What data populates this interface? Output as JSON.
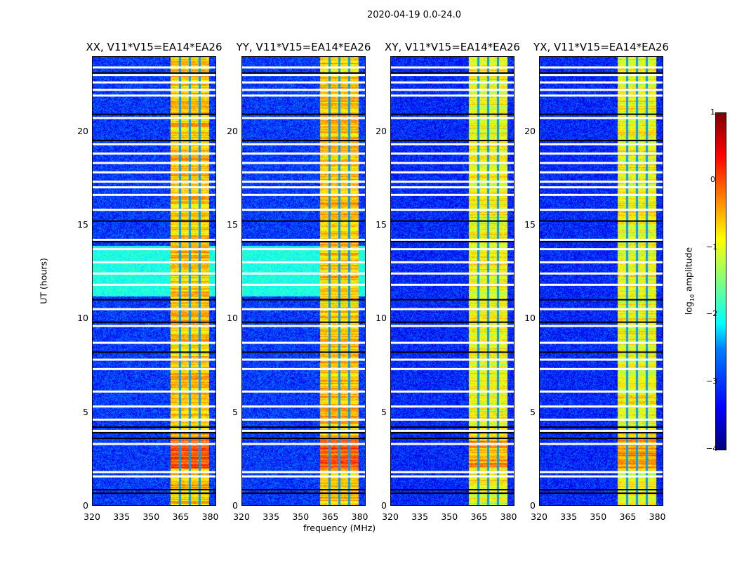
{
  "chart_data": {
    "type": "heatmap",
    "title": "2020-04-19 0.0-24.0",
    "xlabel": "frequency (MHz)",
    "ylabel": "UT (hours)",
    "xlim": [
      320,
      383
    ],
    "ylim": [
      0,
      24
    ],
    "xticks": [
      "320",
      "335",
      "350",
      "365",
      "380"
    ],
    "xtick_values": [
      320,
      335,
      350,
      365,
      380
    ],
    "yticks": [
      "0",
      "5",
      "10",
      "15",
      "20"
    ],
    "ytick_values": [
      0,
      5,
      10,
      15,
      20
    ],
    "colorbar": {
      "label_prefix": "log",
      "label_sub": "10",
      "label_suffix": " amplitude",
      "range": [
        -4,
        1
      ],
      "ticks": [
        "1",
        "0",
        "−1",
        "−2",
        "−3",
        "−4"
      ],
      "tick_values": [
        1,
        0,
        -1,
        -2,
        -3,
        -4
      ],
      "colormap": "jet"
    },
    "panels": [
      {
        "title": "XX, V11*V15=EA14*EA26",
        "background": -3.1,
        "band_level": -0.6,
        "green_block": true
      },
      {
        "title": "YY, V11*V15=EA14*EA26",
        "background": -3.1,
        "band_level": -0.6,
        "green_block": true
      },
      {
        "title": "XY, V11*V15=EA14*EA26",
        "background": -3.2,
        "band_level": -0.9,
        "green_block": false
      },
      {
        "title": "YX, V11*V15=EA14*EA26",
        "background": -3.2,
        "band_level": -0.9,
        "green_block": false
      }
    ],
    "rfi_band_mhz": [
      359.6,
      379.3
    ],
    "band_dividers_mhz": [
      364.5,
      369.5,
      374.3
    ],
    "flagged_hours_white": [
      1.57,
      1.8,
      3.3,
      4.0,
      4.6,
      5.3,
      6.1,
      7.3,
      7.8,
      8.7,
      9.6,
      10.5,
      11.8,
      12.4,
      13.0,
      13.7,
      14.2,
      15.8,
      16.6,
      17.0,
      17.3,
      17.8,
      18.3,
      18.8,
      19.3,
      20.7,
      21.9,
      22.2,
      22.6,
      23.0,
      23.4
    ],
    "flagged_hours_black": [
      0.67,
      0.86,
      3.6,
      3.9,
      4.2,
      8.2,
      9.8,
      11.0,
      14.1,
      15.2,
      19.5,
      20.9,
      23.1
    ]
  }
}
